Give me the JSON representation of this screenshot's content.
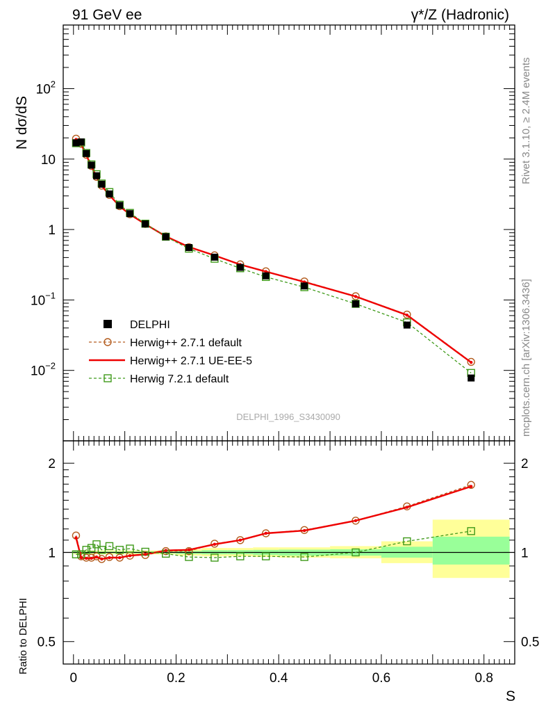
{
  "header": {
    "left_title": "91 GeV ee",
    "right_title": "γ*/Z (Hadronic)"
  },
  "side_labels": {
    "rivet": "Rivet 3.1.10, ≥ 2.4M events",
    "source": "mcplots.cern.ch [arXiv:1306.3436]"
  },
  "colors": {
    "data": "#000000",
    "herwigpp_default": "#b35c1e",
    "herwigpp_ueee5": "#ee0000",
    "herwig7_default": "#3f9a1a",
    "band_outer": "#ffff99",
    "band_inner": "#99ff99"
  },
  "chart_data": [
    {
      "type": "line",
      "panel": "main",
      "title": "",
      "watermark": "DELPHI_1996_S3430090",
      "ylabel": "N dσ/dS",
      "xlabel": "",
      "yscale": "log",
      "xlim": [
        -0.02,
        0.86
      ],
      "ylim": [
        0.001,
        800
      ],
      "y_ticks": [
        {
          "value": 0.01,
          "base": "10",
          "exp": "−2"
        },
        {
          "value": 0.1,
          "base": "10",
          "exp": "−1"
        },
        {
          "value": 1,
          "base": "1",
          "exp": ""
        },
        {
          "value": 10,
          "base": "10",
          "exp": ""
        },
        {
          "value": 100,
          "base": "10",
          "exp": "2"
        }
      ],
      "x": [
        0.005,
        0.015,
        0.025,
        0.035,
        0.045,
        0.055,
        0.07,
        0.09,
        0.11,
        0.14,
        0.18,
        0.225,
        0.275,
        0.325,
        0.375,
        0.45,
        0.55,
        0.65,
        0.775
      ],
      "legend": "left-center",
      "series": [
        {
          "name": "DELPHI",
          "style": "data",
          "values": [
            17,
            17.5,
            12,
            8.2,
            5.8,
            4.4,
            3.2,
            2.2,
            1.68,
            1.2,
            0.79,
            0.555,
            0.405,
            0.29,
            0.22,
            0.158,
            0.088,
            0.044,
            0.0078
          ]
        },
        {
          "name": "Herwig++ 2.7.1 default",
          "style": "circle-dashed",
          "values": [
            19.5,
            16.5,
            11.5,
            8.0,
            5.6,
            4.2,
            3.1,
            2.15,
            1.65,
            1.2,
            0.8,
            0.56,
            0.43,
            0.32,
            0.255,
            0.183,
            0.113,
            0.062,
            0.0132
          ]
        },
        {
          "name": "Herwig++ 2.7.1 UE-EE-5",
          "style": "solid",
          "values": [
            19.0,
            16.3,
            11.4,
            7.9,
            5.55,
            4.18,
            3.08,
            2.13,
            1.64,
            1.19,
            0.8,
            0.565,
            0.428,
            0.318,
            0.253,
            0.18,
            0.112,
            0.061,
            0.013
          ]
        },
        {
          "name": "Herwig 7.2.1 default",
          "style": "square-dashed",
          "values": [
            16.8,
            17.2,
            12.2,
            8.4,
            6.1,
            4.5,
            3.4,
            2.25,
            1.72,
            1.21,
            0.79,
            0.535,
            0.385,
            0.282,
            0.212,
            0.152,
            0.088,
            0.048,
            0.0092
          ]
        }
      ]
    },
    {
      "type": "line",
      "panel": "ratio",
      "title": "",
      "ylabel": "Ratio to DELPHI",
      "xlabel": "S",
      "yscale": "log",
      "xlim": [
        -0.02,
        0.86
      ],
      "ylim": [
        0.42,
        2.38
      ],
      "y_ticks": [
        {
          "value": 0.5,
          "label": "0.5"
        },
        {
          "value": 1,
          "label": "1"
        },
        {
          "value": 2,
          "label": "2"
        }
      ],
      "x_ticks": [
        {
          "value": 0,
          "label": "0"
        },
        {
          "value": 0.2,
          "label": "0.2"
        },
        {
          "value": 0.4,
          "label": "0.4"
        },
        {
          "value": 0.6,
          "label": "0.6"
        },
        {
          "value": 0.8,
          "label": "0.8"
        }
      ],
      "x": [
        0.005,
        0.015,
        0.025,
        0.035,
        0.045,
        0.055,
        0.07,
        0.09,
        0.11,
        0.14,
        0.18,
        0.225,
        0.275,
        0.325,
        0.375,
        0.45,
        0.55,
        0.65,
        0.775
      ],
      "error_bands": [
        {
          "x0": 0.0,
          "x1": 0.2,
          "outer": [
            0.985,
            1.015
          ],
          "inner": [
            0.993,
            1.007
          ]
        },
        {
          "x0": 0.2,
          "x1": 0.25,
          "outer": [
            0.975,
            1.025
          ],
          "inner": [
            0.988,
            1.012
          ]
        },
        {
          "x0": 0.25,
          "x1": 0.3,
          "outer": [
            0.97,
            1.035
          ],
          "inner": [
            0.985,
            1.018
          ]
        },
        {
          "x0": 0.3,
          "x1": 0.35,
          "outer": [
            0.97,
            1.035
          ],
          "inner": [
            0.985,
            1.018
          ]
        },
        {
          "x0": 0.35,
          "x1": 0.4,
          "outer": [
            0.965,
            1.04
          ],
          "inner": [
            0.98,
            1.02
          ]
        },
        {
          "x0": 0.4,
          "x1": 0.5,
          "outer": [
            0.96,
            1.04
          ],
          "inner": [
            0.975,
            1.022
          ]
        },
        {
          "x0": 0.5,
          "x1": 0.6,
          "outer": [
            0.955,
            1.05
          ],
          "inner": [
            0.975,
            1.025
          ]
        },
        {
          "x0": 0.6,
          "x1": 0.7,
          "outer": [
            0.92,
            1.09
          ],
          "inner": [
            0.96,
            1.045
          ]
        },
        {
          "x0": 0.7,
          "x1": 0.85,
          "outer": [
            0.82,
            1.29
          ],
          "inner": [
            0.91,
            1.13
          ]
        }
      ],
      "series": [
        {
          "name": "Herwig++ 2.7.1 default",
          "style": "circle-dashed",
          "values": [
            1.14,
            0.97,
            0.96,
            0.96,
            0.97,
            0.95,
            0.965,
            0.96,
            0.975,
            0.98,
            1.01,
            1.01,
            1.07,
            1.1,
            1.16,
            1.19,
            1.28,
            1.43,
            1.69
          ]
        },
        {
          "name": "Herwig++ 2.7.1 UE-EE-5",
          "style": "solid",
          "values": [
            1.12,
            0.96,
            0.955,
            0.955,
            0.965,
            0.95,
            0.96,
            0.96,
            0.975,
            0.985,
            1.015,
            1.02,
            1.065,
            1.1,
            1.16,
            1.185,
            1.28,
            1.42,
            1.67
          ]
        },
        {
          "name": "Herwig 7.2.1 default",
          "style": "square-dashed",
          "values": [
            0.985,
            0.985,
            1.02,
            1.035,
            1.065,
            1.02,
            1.05,
            1.02,
            1.03,
            1.005,
            0.99,
            0.965,
            0.96,
            0.97,
            0.97,
            0.965,
            1.0,
            1.09,
            1.18
          ]
        }
      ]
    }
  ]
}
